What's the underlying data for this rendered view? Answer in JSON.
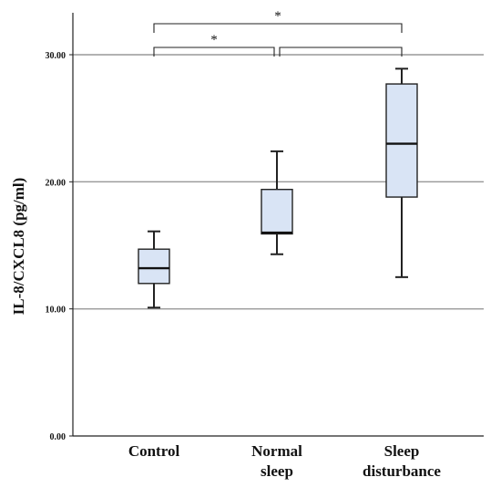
{
  "chart_data": {
    "type": "boxplot",
    "title": "",
    "ylabel": "IL-8/CXCL8 (pg/ml)",
    "xlabel": "",
    "ylim": [
      0,
      33
    ],
    "yticks": [
      0,
      10,
      20,
      30
    ],
    "ytick_labels": [
      "0.00",
      "10.00",
      "20.00",
      "30.00"
    ],
    "gridlines_at": [
      10,
      20,
      30
    ],
    "categories": [
      {
        "id": "control",
        "lines": [
          "Control"
        ]
      },
      {
        "id": "normal-sleep",
        "lines": [
          "Normal",
          "sleep"
        ]
      },
      {
        "id": "sleep-disturbance",
        "lines": [
          "Sleep",
          "disturbance"
        ]
      }
    ],
    "boxes": [
      {
        "min": 10.1,
        "q1": 12.0,
        "median": 13.2,
        "q3": 14.7,
        "max": 16.1
      },
      {
        "min": 14.3,
        "q1": 15.9,
        "median": 16.0,
        "q3": 19.4,
        "max": 22.4
      },
      {
        "min": 12.5,
        "q1": 18.8,
        "median": 23.0,
        "q3": 27.7,
        "max": 28.9
      }
    ],
    "significance": [
      {
        "from": 0,
        "to": 2,
        "label": "*",
        "level": 2
      },
      {
        "from": 0,
        "to": 1,
        "label": "*",
        "level": 1
      },
      {
        "from": 1,
        "to": 2,
        "label": "",
        "level": 1
      }
    ],
    "box_fill": "#d9e4f5",
    "box_stroke": "#222222",
    "grid_color": "#999999",
    "axis_color": "#222222"
  }
}
